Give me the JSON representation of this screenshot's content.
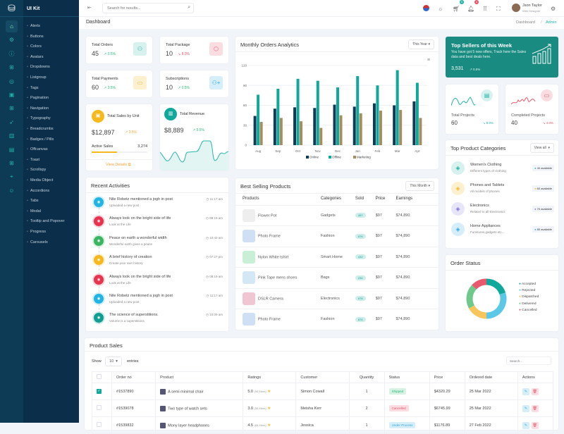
{
  "app": {
    "brand": "UI Kit",
    "search_placeholder": "Search for results...",
    "user_name": "Json Taylor",
    "user_role": "Web Designer",
    "cart_count": "5",
    "notif_count": "4",
    "page_title": "Dashboard",
    "breadcrumb": [
      "Dashboard",
      "Admin"
    ]
  },
  "sidebar": {
    "rail_icons": [
      "home-icon",
      "settings-icon",
      "info-icon",
      "grid-icon",
      "globe-icon",
      "layout-icon",
      "grid2-icon",
      "rocket-icon",
      "book-icon",
      "file-icon",
      "apps-icon",
      "map-pin-icon",
      "emoji-icon"
    ],
    "items": [
      "Alerts",
      "Buttons",
      "Colors",
      "Avatars",
      "Dropdowns",
      "Listgroup",
      "Tags",
      "Pagination",
      "Navigation",
      "Typography",
      "Breadcrumbs",
      "Badges / Pills",
      "Offcanvas",
      "Toast",
      "Scrollspy",
      "Media Object",
      "Accordions",
      "Tabs",
      "Modal",
      "Tooltip and Popover",
      "Progress",
      "Carousels"
    ]
  },
  "stats": [
    {
      "label": "Total Orders",
      "value": "45",
      "change": "0.5%",
      "trend": "up",
      "icon": "user-icon",
      "color": "#1fb3a5",
      "bg": "#d6f1ee"
    },
    {
      "label": "Total Package",
      "value": "10",
      "change": "8.0%",
      "trend": "down",
      "icon": "box-icon",
      "color": "#e5566a",
      "bg": "#fbdde1"
    },
    {
      "label": "Total Payments",
      "value": "60",
      "change": "3.5%",
      "trend": "up",
      "icon": "card-icon",
      "color": "#f2b730",
      "bg": "#fdf0cf"
    },
    {
      "label": "Subscriptions",
      "value": "10",
      "change": "0.5%",
      "trend": "up",
      "icon": "user-plus-icon",
      "color": "#34a8df",
      "bg": "#d5eefa"
    }
  ],
  "sales_unit": {
    "title": "Total Sales by Unit",
    "value": "$12,897",
    "change": "3.5%",
    "active_label": "Active Sales",
    "active_value": "3,274",
    "progress": 0.45,
    "link": "View Details"
  },
  "revenue": {
    "title": "Total Revenue",
    "value": "$8,889",
    "change": "5.5%"
  },
  "monthly": {
    "title": "Monthly Orders Analytics",
    "filter": "This Year"
  },
  "chart_data": {
    "type": "bar",
    "categories": [
      "Aug",
      "Sep",
      "Oct",
      "Nov",
      "Dec",
      "Jan",
      "Feb",
      "Mar",
      "Apr"
    ],
    "ylim": [
      0,
      120
    ],
    "yticks": [
      "0",
      "30",
      "60",
      "90",
      "120"
    ],
    "grid": true,
    "legend": "bottom",
    "series": [
      {
        "name": "Online",
        "color": "#0f3b57",
        "values": [
          44,
          55,
          57,
          56,
          61,
          58,
          63,
          60,
          66
        ]
      },
      {
        "name": "Offline",
        "color": "#0fa89b",
        "values": [
          76,
          85,
          100,
          97,
          87,
          104,
          90,
          113,
          94
        ]
      },
      {
        "name": "Marketing",
        "color": "#a58d5f",
        "values": [
          35,
          41,
          36,
          26,
          45,
          48,
          52,
          53,
          41
        ]
      }
    ]
  },
  "top_sellers": {
    "title": "Top Sellers of this Week",
    "text": "You have got 5 new offers, Track here the Sales data and best deals here.",
    "value": "3,531",
    "change": "0.5%"
  },
  "projects": [
    {
      "label": "Total Projects",
      "value": "60",
      "change": "8.0%",
      "color": "#1fb3a5"
    },
    {
      "label": "Completed Projects",
      "value": "40",
      "change": "4.0%",
      "color": "#e5566a"
    }
  ],
  "categories": {
    "title": "Top Product Categories",
    "filter": "View all",
    "items": [
      {
        "name": "Women's Clothing",
        "desc": "Different types of clothing",
        "badge": "40 available",
        "color": "#1fb3a5",
        "bg": "#d6f1ee"
      },
      {
        "name": "Phones and Tablets",
        "desc": "All models of phones",
        "badge": "60 available",
        "color": "#f2b730",
        "bg": "#fdf0cf"
      },
      {
        "name": "Electronics",
        "desc": "Related to all Electronics",
        "badge": "70 available",
        "color": "#7c6fd6",
        "bg": "#e7e5fa"
      },
      {
        "name": "Home Appliances",
        "desc": "Furnitures,gadgets etc...",
        "badge": "80 available",
        "color": "#34a8df",
        "bg": "#d5eefa"
      }
    ]
  },
  "order_status": {
    "title": "Order Status",
    "legend": [
      {
        "name": "Accepted",
        "color": "#0fa89b",
        "value": 20
      },
      {
        "name": "Rejected",
        "color": "#5bc8e8",
        "value": 30
      },
      {
        "name": "Dispatched",
        "color": "#f7c55a",
        "value": 17
      },
      {
        "name": "Delivered",
        "color": "#6fc98a",
        "value": 20
      },
      {
        "name": "Cancelled",
        "color": "#ea5870",
        "value": 13
      }
    ]
  },
  "activities": {
    "title": "Recent Activities",
    "items": [
      {
        "title": "Nile Robetz mentioned a jogh in post",
        "sub": "Uploaded a new post",
        "time": "11:17 am",
        "color": "#22b5e3"
      },
      {
        "title": "Always look on the bright side of life",
        "sub": "Look at the Life",
        "time": "08:19 am",
        "color": "#e8334f"
      },
      {
        "title": "Peace on earth a wonderful width",
        "sub": "Wonderful earth gives a peace",
        "time": "10:43 am",
        "color": "#3cb563"
      },
      {
        "title": "A brief history of creation",
        "sub": "Create your own history",
        "time": "07:27 pm",
        "color": "#f6b91d"
      },
      {
        "title": "Always look on the bright side of life",
        "sub": "Look at the Life",
        "time": "08:19 am",
        "color": "#e8334f"
      },
      {
        "title": "Nile Robetz mentioned a jogh in post",
        "sub": "Uploaded a new post",
        "time": "11:17 am",
        "color": "#22b5e3"
      },
      {
        "title": "The science of superstitions.",
        "sub": "Volume is a superstitions",
        "time": "10:09 am",
        "color": "#119e92"
      }
    ]
  },
  "best": {
    "title": "Best Selling Products",
    "filter": "This Month",
    "headers": [
      "Products",
      "Categories",
      "Sold",
      "Price",
      "Earnings"
    ],
    "rows": [
      {
        "name": "Flower Pot",
        "cat": "Gadgets",
        "sold": "457",
        "price": "$97",
        "earn": "$74,890",
        "bg": "#eeeeee"
      },
      {
        "name": "Photo Frame",
        "cat": "Fashion",
        "sold": "876",
        "price": "$97",
        "earn": "$74,890",
        "bg": "#cfe0f5"
      },
      {
        "name": "Nylon White tshirt",
        "cat": "Smart Home",
        "sold": "432",
        "price": "$97",
        "earn": "$74,890",
        "bg": "#c9efd6"
      },
      {
        "name": "Pink Tape mens shoes",
        "cat": "Bags",
        "sold": "234",
        "price": "$97",
        "earn": "$74,890",
        "bg": "#d3e8f4"
      },
      {
        "name": "DSLR Camera",
        "cat": "Electronics",
        "sold": "678",
        "price": "$97",
        "earn": "$74,890",
        "bg": "#f0c6d2"
      },
      {
        "name": "Photo Frame",
        "cat": "Fashion",
        "sold": "876",
        "price": "$97",
        "earn": "$74,890",
        "bg": "#cfe0f5"
      }
    ]
  },
  "sales": {
    "title": "Product Sales",
    "show": "Show",
    "entries_value": "10",
    "entries": "entries",
    "search_placeholder": "Search...",
    "headers": [
      "Order no",
      "Product",
      "Ratings",
      "Customer",
      "Quantity",
      "Status",
      "Price",
      "Ordered date",
      "Actions"
    ],
    "rows": [
      {
        "checked": true,
        "order": "#1537890",
        "product": "A semi minimal chair",
        "rating": "5.0",
        "reviews": "(90 Mem)",
        "customer": "Simon Cowall",
        "qty": "1",
        "status": "Shipped",
        "status_color": "#2db87a",
        "status_bg": "#d5f2e3",
        "price": "$4320.29",
        "date": "25 Mar 2022"
      },
      {
        "checked": false,
        "order": "#1539078",
        "product": "Two type of watch sets",
        "rating": "3.0",
        "reviews": "(50 Mem)",
        "customer": "Meisha Kerr",
        "qty": "2",
        "status": "Cancelled",
        "status_color": "#e5566a",
        "status_bg": "#fbdde1",
        "price": "$6745.99",
        "date": "25 Mar 2022"
      },
      {
        "checked": false,
        "order": "#1539832",
        "product": "Mony layer headphones",
        "rating": "4.5",
        "reviews": "(65 Mem)",
        "customer": "Jessica",
        "qty": "1",
        "status": "Under Process",
        "status_color": "#34a8df",
        "status_bg": "#d5eefa",
        "price": "$1176.89",
        "date": "27 Feb 2022"
      }
    ]
  }
}
